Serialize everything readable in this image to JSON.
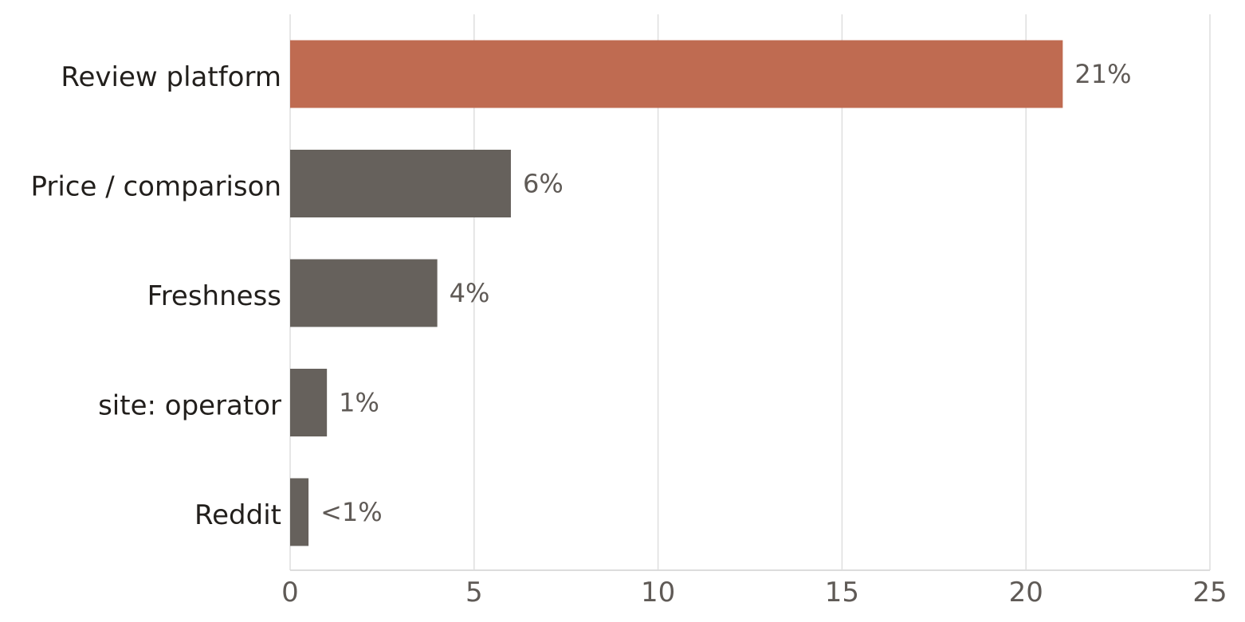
{
  "chart_data": {
    "type": "bar",
    "orientation": "horizontal",
    "categories": [
      "Review platform",
      "Price / comparison",
      "Freshness",
      "site: operator",
      "Reddit"
    ],
    "values": [
      21,
      6,
      4,
      1,
      0.5
    ],
    "value_labels": [
      "21%",
      "6%",
      "4%",
      "1%",
      "<1%"
    ],
    "highlight_index": 0,
    "colors": {
      "highlight": "#bf6b51",
      "default": "#66615c"
    },
    "xlim": [
      0,
      25
    ],
    "xticks": [
      0,
      5,
      10,
      15,
      20,
      25
    ],
    "xtick_labels": [
      "0",
      "5",
      "10",
      "15",
      "20",
      "25"
    ],
    "grid": "vertical",
    "legend": "none"
  }
}
